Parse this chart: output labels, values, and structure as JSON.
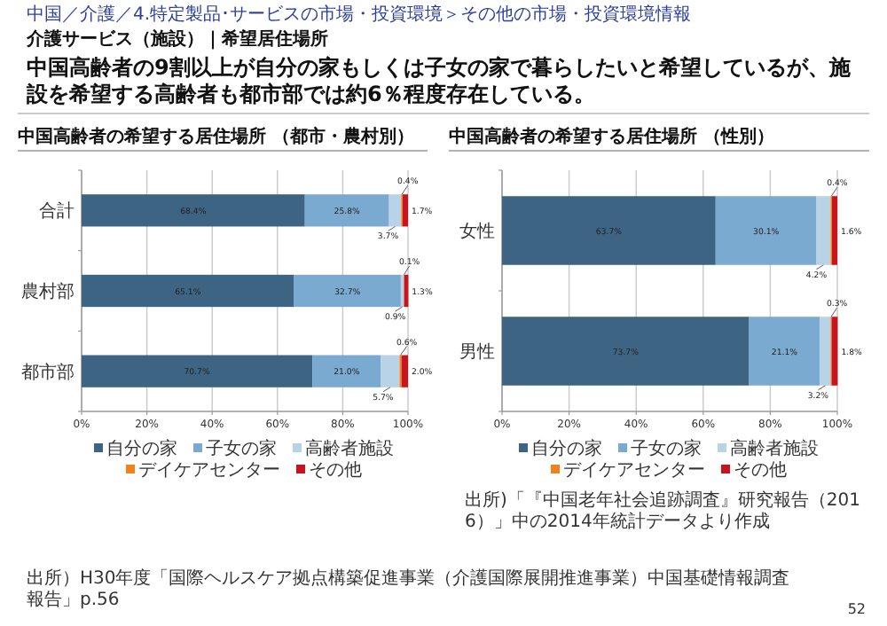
{
  "chart_data": [
    {
      "type": "other",
      "title": "中国高齢者の9割以上が自分の家もしくは子女の家で暮らしたいと希望しているが、施設を希望する高齢者も都市部では約6％程度存在している。",
      "subtitle": "介護サービス（施設）｜希望居住場所",
      "annotations": [
        "中国／介護／4.特定製品･サービスの市場・投資環境＞その他の市場・投資環境情報",
        "出所）H30年度「国際ヘルスケア拠点構築促進事業（介護国際展開推進事業）中国基礎情報調査報告」p.56",
        "52"
      ]
    },
    {
      "type": "bar",
      "orientation": "horizontal",
      "stacked": true,
      "title": "中国高齢者の希望する居住場所 （都市・農村別）",
      "categories": [
        "合計",
        "農村部",
        "都市部"
      ],
      "xlim": [
        0,
        100
      ],
      "xticks": [
        {
          "value": 0,
          "label": "0%"
        },
        {
          "value": 20,
          "label": "20%"
        },
        {
          "value": 40,
          "label": "40%"
        },
        {
          "value": 60,
          "label": "60%"
        },
        {
          "value": 80,
          "label": "80%"
        },
        {
          "value": 100,
          "label": "100%"
        }
      ],
      "grid": "x",
      "legend": "bottom",
      "series": [
        {
          "name": "自分の家",
          "color": "#3e6483",
          "values": [
            68.4,
            65.1,
            70.7
          ],
          "value_labels": [
            "68.4%",
            "65.1%",
            "70.7%"
          ]
        },
        {
          "name": "子女の家",
          "color": "#7aaad0",
          "values": [
            25.8,
            32.7,
            21.0
          ],
          "value_labels": [
            "25.8%",
            "32.7%",
            "21.0%"
          ]
        },
        {
          "name": "高齢者施設",
          "color": "#b9d3e6",
          "values": [
            3.7,
            0.9,
            5.7
          ],
          "value_labels": [
            "3.7%",
            "0.9%",
            "5.7%"
          ]
        },
        {
          "name": "デイケアセンター",
          "color": "#f0821e",
          "values": [
            0.4,
            0.1,
            0.6
          ],
          "value_labels": [
            "0.4%",
            "0.1%",
            "0.6%"
          ]
        },
        {
          "name": "その他",
          "color": "#c8141e",
          "values": [
            1.7,
            1.3,
            2.0
          ],
          "value_labels": [
            "1.7%",
            "1.3%",
            "2.0%"
          ]
        }
      ]
    },
    {
      "type": "bar",
      "orientation": "horizontal",
      "stacked": true,
      "title": "中国高齢者の希望する居住場所 （性別）",
      "categories": [
        "女性",
        "男性"
      ],
      "xlim": [
        0,
        100
      ],
      "xticks": [
        {
          "value": 0,
          "label": "0%"
        },
        {
          "value": 20,
          "label": "20%"
        },
        {
          "value": 40,
          "label": "40%"
        },
        {
          "value": 60,
          "label": "60%"
        },
        {
          "value": 80,
          "label": "80%"
        },
        {
          "value": 100,
          "label": "100%"
        }
      ],
      "grid": "x",
      "legend": "bottom",
      "annotations": [
        "出所)「『中国老年社会追跡調査』研究報告（2016）」中の2014年統計データより作成"
      ],
      "series": [
        {
          "name": "自分の家",
          "color": "#3e6483",
          "values": [
            63.7,
            73.7
          ],
          "value_labels": [
            "63.7%",
            "73.7%"
          ]
        },
        {
          "name": "子女の家",
          "color": "#7aaad0",
          "values": [
            30.1,
            21.1
          ],
          "value_labels": [
            "30.1%",
            "21.1%"
          ]
        },
        {
          "name": "高齢者施設",
          "color": "#b9d3e6",
          "values": [
            4.2,
            3.2
          ],
          "value_labels": [
            "4.2%",
            "3.2%"
          ]
        },
        {
          "name": "デイケアセンター",
          "color": "#f0821e",
          "values": [
            0.4,
            0.3
          ],
          "value_labels": [
            "0.4%",
            "0.3%"
          ]
        },
        {
          "name": "その他",
          "color": "#c8141e",
          "values": [
            1.6,
            1.8
          ],
          "value_labels": [
            "1.6%",
            "1.8%"
          ]
        }
      ]
    }
  ]
}
